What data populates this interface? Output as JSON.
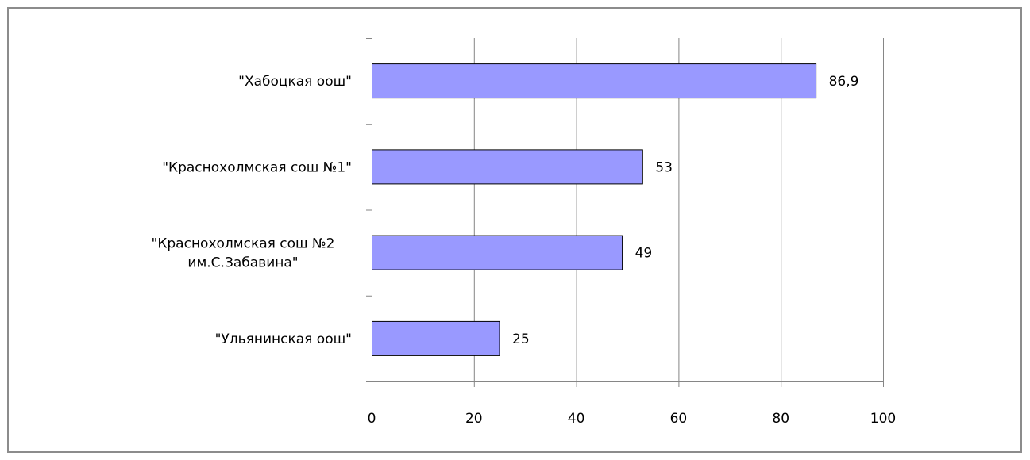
{
  "chart_data": {
    "type": "bar",
    "orientation": "horizontal",
    "categories": [
      [
        "\"Хабоцкая оош\""
      ],
      [
        "\"Краснохолмская сош №1\""
      ],
      [
        "\"Краснохолмская сош №2",
        "им.С.Забавина\""
      ],
      [
        "\"Ульянинская оош\""
      ]
    ],
    "values": [
      86.9,
      53,
      49,
      25
    ],
    "value_labels": [
      "86,9",
      "53",
      "49",
      "25"
    ],
    "xlim": [
      0,
      100
    ],
    "xticks": [
      0,
      20,
      40,
      60,
      80,
      100
    ],
    "tick_labels": [
      "0",
      "20",
      "40",
      "60",
      "80",
      "100"
    ],
    "grid": true,
    "legend": "none",
    "colors": {
      "bar_fill": "#9999ff",
      "bar_stroke": "#000000",
      "grid": "#868686",
      "axis": "#868686",
      "frame": "#8c8c8c"
    }
  }
}
